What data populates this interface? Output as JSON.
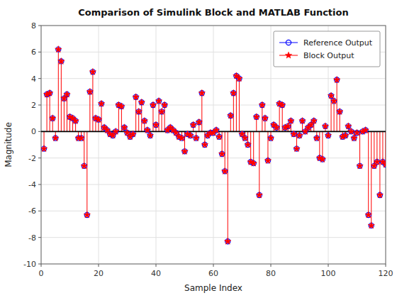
{
  "chart_data": {
    "type": "stem",
    "title": "Comparison of Simulink Block and MATLAB Function",
    "x_label": "Sample Index",
    "y_label": "Magnitude",
    "xlim": [
      0,
      120
    ],
    "ylim": [
      -10,
      8
    ],
    "xticks": [
      0,
      20,
      40,
      60,
      80,
      100,
      120
    ],
    "yticks": [
      -10,
      -8,
      -6,
      -4,
      -2,
      0,
      2,
      4,
      6,
      8
    ],
    "grid": true,
    "legend": "upper right",
    "x": [
      1,
      2,
      3,
      4,
      5,
      6,
      7,
      8,
      9,
      10,
      11,
      12,
      13,
      14,
      15,
      16,
      17,
      18,
      19,
      20,
      21,
      22,
      23,
      24,
      25,
      26,
      27,
      28,
      29,
      30,
      31,
      32,
      33,
      34,
      35,
      36,
      37,
      38,
      39,
      40,
      41,
      42,
      43,
      44,
      45,
      46,
      47,
      48,
      49,
      50,
      51,
      52,
      53,
      54,
      55,
      56,
      57,
      58,
      59,
      60,
      61,
      62,
      63,
      64,
      65,
      66,
      67,
      68,
      69,
      70,
      71,
      72,
      73,
      74,
      75,
      76,
      77,
      78,
      79,
      80,
      81,
      82,
      83,
      84,
      85,
      86,
      87,
      88,
      89,
      90,
      91,
      92,
      93,
      94,
      95,
      96,
      97,
      98,
      99,
      100,
      101,
      102,
      103,
      104,
      105,
      106,
      107,
      108,
      109,
      110,
      111,
      112,
      113,
      114,
      115,
      116,
      117,
      118,
      119,
      120
    ],
    "series": [
      {
        "name": "Reference Output",
        "color": "#0000ff",
        "type": "scatter",
        "marker": "circle",
        "values": [
          -1.3,
          2.8,
          2.9,
          1.0,
          -0.5,
          6.2,
          5.3,
          2.5,
          2.8,
          1.1,
          1.0,
          0.8,
          -0.5,
          -0.5,
          -2.6,
          -6.3,
          3.0,
          4.5,
          1.0,
          0.9,
          2.1,
          0.3,
          0.1,
          -0.2,
          -0.3,
          0.0,
          2.0,
          1.9,
          0.3,
          -0.1,
          -0.4,
          -0.2,
          2.6,
          1.5,
          2.2,
          0.8,
          0.1,
          -0.3,
          2.0,
          0.5,
          2.3,
          1.5,
          2.0,
          0.1,
          0.3,
          0.1,
          -0.1,
          -0.4,
          -0.5,
          -1.5,
          -0.2,
          -0.3,
          0.5,
          -0.5,
          0.7,
          2.9,
          -1.0,
          -0.3,
          -0.1,
          -0.1,
          0.1,
          -0.4,
          -1.7,
          -3.0,
          -8.3,
          1.2,
          2.9,
          4.2,
          4.0,
          -0.2,
          -0.5,
          -1.0,
          -2.3,
          -2.4,
          1.1,
          -4.8,
          2.0,
          1.0,
          -2.2,
          -0.5,
          0.5,
          0.3,
          2.1,
          2.0,
          0.3,
          0.4,
          0.8,
          -0.2,
          -1.3,
          -0.3,
          0.8,
          0.0,
          0.3,
          0.5,
          0.8,
          -0.5,
          -2.0,
          -2.1,
          0.4,
          -0.3,
          2.7,
          2.3,
          3.9,
          1.5,
          -0.4,
          -0.3,
          0.4,
          0.0,
          -0.5,
          -0.1,
          -2.6,
          0.0,
          0.1,
          -6.3,
          -7.1,
          -2.6,
          -2.3,
          -4.8,
          -2.3,
          -2.5
        ]
      },
      {
        "name": "Block Output",
        "color": "#ff0000",
        "type": "stem",
        "marker": "star",
        "values": [
          -1.3,
          2.8,
          2.9,
          1.0,
          -0.5,
          6.2,
          5.3,
          2.5,
          2.8,
          1.1,
          1.0,
          0.8,
          -0.5,
          -0.5,
          -2.6,
          -6.3,
          3.0,
          4.5,
          1.0,
          0.9,
          2.1,
          0.3,
          0.1,
          -0.2,
          -0.3,
          0.0,
          2.0,
          1.9,
          0.3,
          -0.1,
          -0.4,
          -0.2,
          2.6,
          1.5,
          2.2,
          0.8,
          0.1,
          -0.3,
          2.0,
          0.5,
          2.3,
          1.5,
          2.0,
          0.1,
          0.3,
          0.1,
          -0.1,
          -0.4,
          -0.5,
          -1.5,
          -0.2,
          -0.3,
          0.5,
          -0.5,
          0.7,
          2.9,
          -1.0,
          -0.3,
          -0.1,
          -0.1,
          0.1,
          -0.4,
          -1.7,
          -3.0,
          -8.3,
          1.2,
          2.9,
          4.2,
          4.0,
          -0.2,
          -0.5,
          -1.0,
          -2.3,
          -2.4,
          1.1,
          -4.8,
          2.0,
          1.0,
          -2.2,
          -0.5,
          0.5,
          0.3,
          2.1,
          2.0,
          0.3,
          0.4,
          0.8,
          -0.2,
          -1.3,
          -0.3,
          0.8,
          0.0,
          0.3,
          0.5,
          0.8,
          -0.5,
          -2.0,
          -2.1,
          0.4,
          -0.3,
          2.7,
          2.3,
          3.9,
          1.5,
          -0.4,
          -0.3,
          0.4,
          0.0,
          -0.5,
          -0.1,
          -2.6,
          0.0,
          0.1,
          -6.3,
          -7.1,
          -2.6,
          -2.3,
          -4.8,
          -2.3,
          -2.5
        ]
      }
    ]
  }
}
